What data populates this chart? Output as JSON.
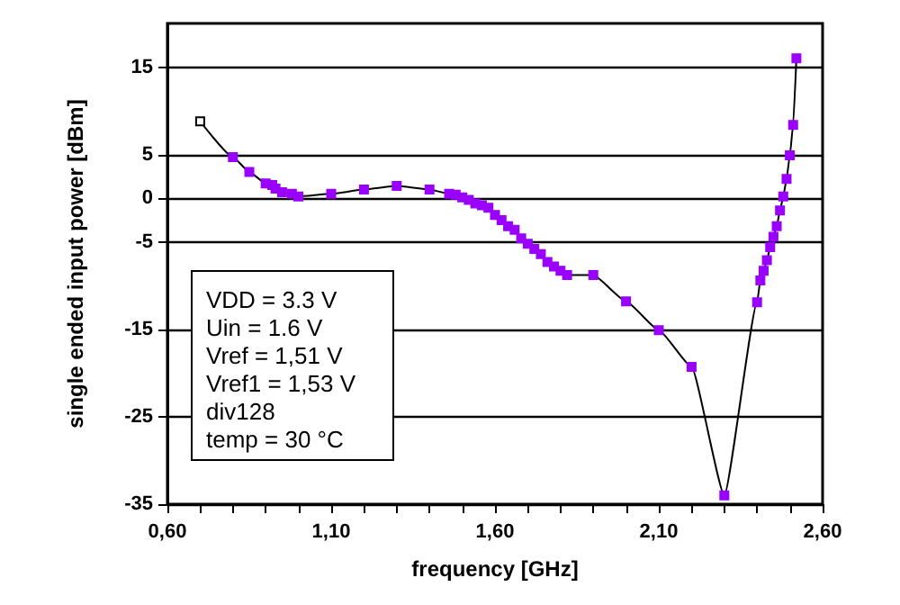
{
  "chart_data": {
    "type": "line",
    "xlabel": "frequency [GHz]",
    "ylabel": "single ended input power [dBm]",
    "annotations": [
      "VDD = 3.3 V",
      "Uin = 1.6 V",
      "Vref = 1,51 V",
      "Vref1 = 1,53 V",
      "div128",
      "temp = 30 °C"
    ],
    "x": [
      0.7,
      0.8,
      0.85,
      0.9,
      0.92,
      0.93,
      0.95,
      0.98,
      1.0,
      1.1,
      1.2,
      1.3,
      1.4,
      1.46,
      1.48,
      1.5,
      1.52,
      1.54,
      1.56,
      1.58,
      1.6,
      1.62,
      1.64,
      1.66,
      1.68,
      1.7,
      1.72,
      1.74,
      1.76,
      1.78,
      1.8,
      1.82,
      1.9,
      2.0,
      2.1,
      2.2,
      2.3,
      2.4,
      2.41,
      2.42,
      2.43,
      2.44,
      2.45,
      2.46,
      2.47,
      2.48,
      2.49,
      2.5,
      2.51,
      2.52
    ],
    "series": [
      {
        "color": "#000000",
        "colors": [
          "#ffffff",
          "#9900ff",
          "#9900ff",
          "#9900ff",
          "#9900ff",
          "#9900ff",
          "#9900ff",
          "#9900ff",
          "#9900ff",
          "#9900ff",
          "#9900ff",
          "#9900ff",
          "#9900ff",
          "#9900ff",
          "#9900ff",
          "#9900ff",
          "#9900ff",
          "#9900ff",
          "#9900ff",
          "#9900ff",
          "#9900ff",
          "#9900ff",
          "#9900ff",
          "#9900ff",
          "#9900ff",
          "#9900ff",
          "#9900ff",
          "#9900ff",
          "#9900ff",
          "#9900ff",
          "#9900ff",
          "#9900ff",
          "#9900ff",
          "#9900ff",
          "#9900ff",
          "#9900ff",
          "#9900ff",
          "#9900ff",
          "#9900ff",
          "#9900ff",
          "#9900ff",
          "#9900ff",
          "#9900ff",
          "#9900ff",
          "#9900ff",
          "#9900ff",
          "#9900ff",
          "#9900ff",
          "#9900ff",
          "#9900ff"
        ],
        "values": [
          8.8,
          4.7,
          3.0,
          1.7,
          1.5,
          1.1,
          0.7,
          0.5,
          0.2,
          0.5,
          1.0,
          1.4,
          1.0,
          0.5,
          0.4,
          0.1,
          -0.2,
          -0.6,
          -0.8,
          -1.1,
          -1.9,
          -2.5,
          -3.2,
          -3.6,
          -4.6,
          -5.2,
          -5.8,
          -6.4,
          -7.3,
          -7.8,
          -8.3,
          -8.8,
          -8.8,
          -11.8,
          -15.1,
          -19.3,
          -34.0,
          -11.9,
          -9.4,
          -8.3,
          -7.1,
          -5.6,
          -4.4,
          -3.2,
          -1.4,
          0.2,
          2.2,
          4.9,
          8.4,
          16.0
        ]
      }
    ],
    "xlim": [
      0.6,
      2.6
    ],
    "xticks": [
      {
        "value": 0.6,
        "label": "0,60"
      },
      {
        "value": 0.7,
        "label": null
      },
      {
        "value": 0.8,
        "label": null
      },
      {
        "value": 0.9,
        "label": null
      },
      {
        "value": 1.0,
        "label": null
      },
      {
        "value": 1.1,
        "label": "1,10"
      },
      {
        "value": 1.2,
        "label": null
      },
      {
        "value": 1.3,
        "label": null
      },
      {
        "value": 1.4,
        "label": null
      },
      {
        "value": 1.5,
        "label": null
      },
      {
        "value": 1.6,
        "label": "1,60"
      },
      {
        "value": 1.7,
        "label": null
      },
      {
        "value": 1.8,
        "label": null
      },
      {
        "value": 1.9,
        "label": null
      },
      {
        "value": 2.0,
        "label": null
      },
      {
        "value": 2.1,
        "label": "2,10"
      },
      {
        "value": 2.2,
        "label": null
      },
      {
        "value": 2.3,
        "label": null
      },
      {
        "value": 2.4,
        "label": null
      },
      {
        "value": 2.5,
        "label": null
      },
      {
        "value": 2.6,
        "label": "2,60"
      }
    ],
    "ylim": [
      -35,
      20
    ],
    "yticks": [
      -35,
      -25,
      -15,
      -5,
      0,
      5,
      15
    ],
    "grid": "y",
    "marker": "square",
    "line_style": "solid"
  }
}
